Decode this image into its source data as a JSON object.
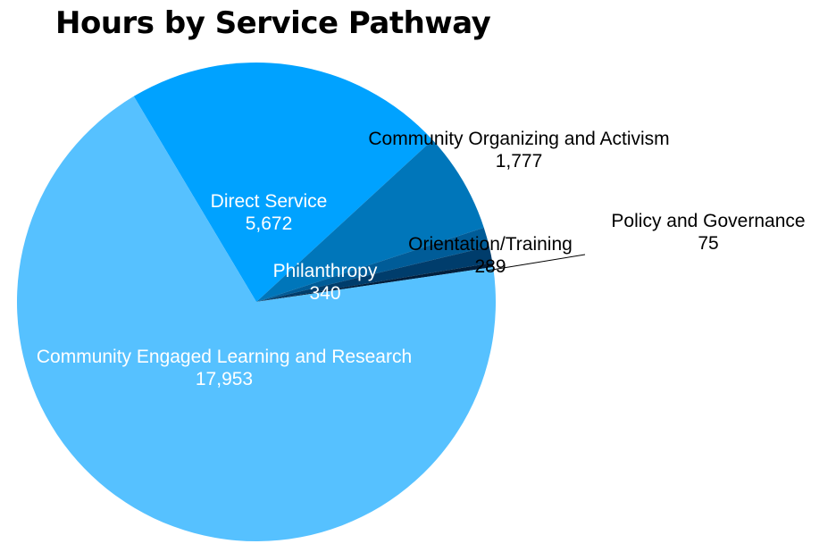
{
  "chart_data": {
    "type": "pie",
    "title": "Hours by Service Pathway",
    "slices": [
      {
        "label": "Direct Service",
        "value": 5672,
        "value_label": "5,672",
        "color": "#00a2ff",
        "label_color": "#ffffff"
      },
      {
        "label": "Community Organizing and Activism",
        "value": 1777,
        "value_label": "1,777",
        "color": "#0076ba",
        "label_color": "#000000"
      },
      {
        "label": "Philanthropy",
        "value": 340,
        "value_label": "340",
        "color": "#005c98",
        "label_color": "#ffffff"
      },
      {
        "label": "Orientation/Training",
        "value": 289,
        "value_label": "289",
        "color": "#003d6c",
        "label_color": "#000000"
      },
      {
        "label": "Policy and Governance",
        "value": 75,
        "value_label": "75",
        "color": "#001f3d",
        "label_color": "#000000"
      },
      {
        "label": "Community Engaged Learning and Research",
        "value": 17953,
        "value_label": "17,953",
        "color": "#56c1ff",
        "label_color": "#ffffff"
      }
    ],
    "legend": "none"
  }
}
